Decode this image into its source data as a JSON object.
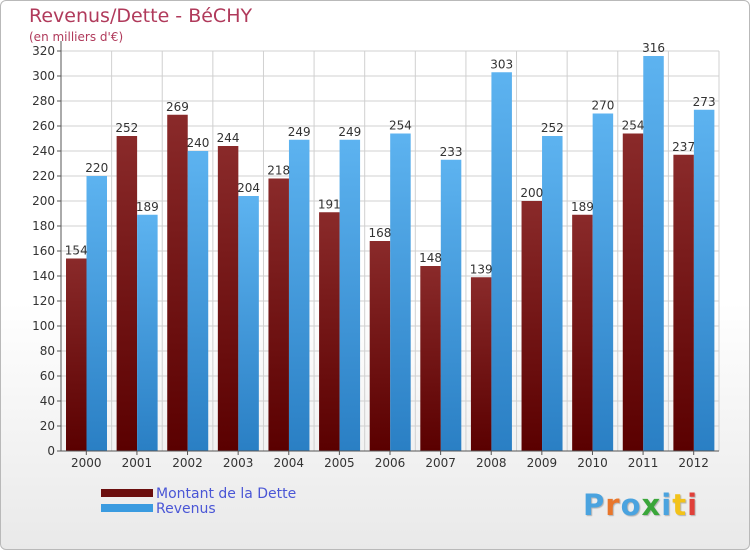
{
  "header": {
    "title": "Revenus/Dette - BéCHY",
    "subtitle": "(en milliers d'€)"
  },
  "legend": {
    "items": [
      {
        "label": "Montant de la Dette",
        "color": "#6b0f0f"
      },
      {
        "label": "Revenus",
        "color": "#3a9be0"
      }
    ]
  },
  "logo": {
    "text": "Proxiti",
    "colors": [
      "#4aa3df",
      "#e8762b",
      "#4aa3df",
      "#3aa63a",
      "#4aa3df",
      "#f2c21a",
      "#e0403a"
    ]
  },
  "chart_data": {
    "type": "bar",
    "title": "Revenus/Dette - BéCHY",
    "subtitle": "(en milliers d'€)",
    "categories": [
      "2000",
      "2001",
      "2002",
      "2003",
      "2004",
      "2005",
      "2006",
      "2007",
      "2008",
      "2009",
      "2010",
      "2011",
      "2012"
    ],
    "series": [
      {
        "name": "Montant de la Dette",
        "color": "#6b0f0f",
        "values": [
          154,
          252,
          269,
          244,
          218,
          191,
          168,
          148,
          139,
          200,
          189,
          254,
          237
        ]
      },
      {
        "name": "Revenus",
        "color": "#3a9be0",
        "values": [
          220,
          189,
          240,
          204,
          249,
          249,
          254,
          233,
          303,
          252,
          270,
          316,
          273
        ]
      }
    ],
    "ylim": [
      0,
      320
    ],
    "ytick_step": 20,
    "grid": true,
    "legend_position": "bottom-left"
  }
}
